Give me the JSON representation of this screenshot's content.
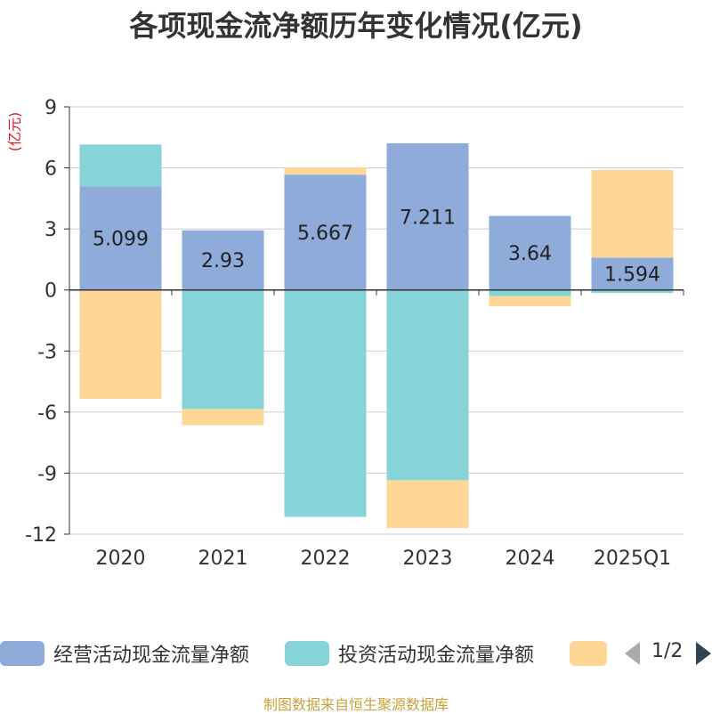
{
  "chart_data": {
    "type": "bar",
    "stacked": true,
    "title": "各项现金流净额历年变化情况(亿元)",
    "unit_label": "(亿元)",
    "categories": [
      "2020",
      "2021",
      "2022",
      "2023",
      "2024",
      "2025Q1"
    ],
    "ylim": [
      -12,
      9
    ],
    "yticks": [
      9,
      6,
      3,
      0,
      -3,
      -6,
      -9,
      -12
    ],
    "grid": true,
    "legend_position": "bottom",
    "series": [
      {
        "name": "经营活动现金流量净额",
        "color": "#8eabd9",
        "values": [
          5.099,
          2.93,
          5.667,
          7.211,
          3.64,
          1.594
        ],
        "labels": [
          "5.099",
          "2.93",
          "5.667",
          "7.211",
          "3.64",
          "1.594"
        ]
      },
      {
        "name": "投资活动现金流量净额",
        "color": "#86d4d8",
        "values": [
          2.05,
          -5.85,
          -11.15,
          -9.35,
          -0.3,
          -0.15
        ]
      },
      {
        "name": "",
        "color": "#fed797",
        "values": [
          -5.35,
          -0.8,
          0.35,
          -2.35,
          -0.5,
          4.3
        ]
      }
    ]
  },
  "legend": {
    "page": "1/2"
  },
  "source": "制图数据来自恒生聚源数据库"
}
